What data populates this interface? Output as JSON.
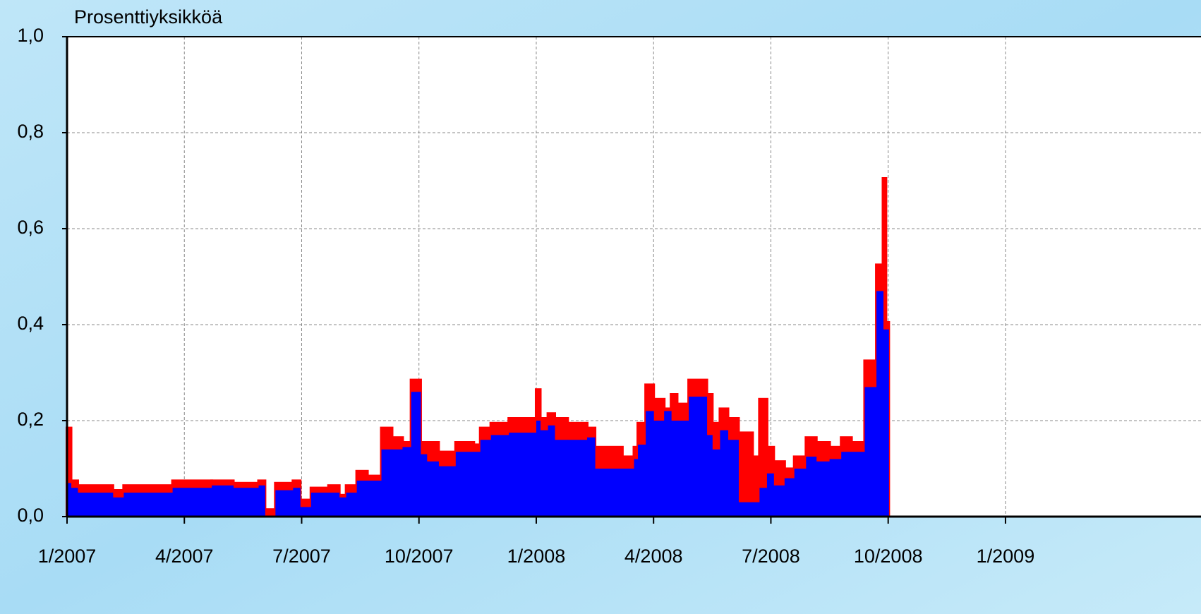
{
  "chart_data": {
    "type": "step-area",
    "y_axis_label": "Prosenttiyksikköä",
    "x": [
      0,
      0.1,
      0.27,
      1.17,
      1.45,
      2.7,
      3.7,
      4.25,
      4.9,
      5.06,
      5.33,
      5.78,
      5.96,
      6.24,
      6.69,
      6.96,
      7.14,
      7.41,
      7.68,
      8.04,
      8.31,
      8.58,
      8.8,
      9.04,
      9.2,
      9.5,
      9.94,
      10.4,
      10.57,
      10.84,
      11.3,
      12.0,
      12.1,
      12.3,
      12.47,
      12.8,
      13.3,
      13.5,
      14.2,
      14.5,
      14.6,
      14.8,
      15.0,
      15.27,
      15.45,
      15.6,
      15.9,
      16.36,
      16.5,
      16.7,
      16.9,
      17.17,
      17.53,
      17.71,
      17.9,
      18.07,
      18.35,
      18.6,
      18.9,
      19.16,
      19.5,
      19.8,
      20.06,
      20.4,
      20.7,
      20.87,
      20.94
    ],
    "series": [
      {
        "color": "#ff0000",
        "values": [
          0.18,
          0.07,
          0.06,
          0.05,
          0.06,
          0.07,
          0.07,
          0.065,
          0.07,
          0.01,
          0.065,
          0.07,
          0.03,
          0.055,
          0.06,
          0.04,
          0.06,
          0.09,
          0.08,
          0.18,
          0.16,
          0.15,
          0.28,
          0.15,
          0.15,
          0.13,
          0.15,
          0.145,
          0.18,
          0.19,
          0.2,
          0.26,
          0.2,
          0.21,
          0.2,
          0.19,
          0.18,
          0.14,
          0.12,
          0.14,
          0.19,
          0.27,
          0.24,
          0.22,
          0.25,
          0.23,
          0.28,
          0.25,
          0.19,
          0.22,
          0.2,
          0.17,
          0.12,
          0.24,
          0.14,
          0.11,
          0.095,
          0.12,
          0.16,
          0.15,
          0.14,
          0.16,
          0.15,
          0.32,
          0.52,
          0.7,
          0.4
        ]
      },
      {
        "color": "#0000ff",
        "values": [
          0.07,
          0.06,
          0.05,
          0.04,
          0.05,
          0.06,
          0.065,
          0.06,
          0.065,
          0.0,
          0.055,
          0.06,
          0.02,
          0.05,
          0.05,
          0.04,
          0.05,
          0.075,
          0.075,
          0.14,
          0.14,
          0.145,
          0.26,
          0.13,
          0.115,
          0.105,
          0.135,
          0.135,
          0.16,
          0.17,
          0.175,
          0.2,
          0.18,
          0.19,
          0.16,
          0.16,
          0.165,
          0.1,
          0.1,
          0.12,
          0.15,
          0.22,
          0.2,
          0.22,
          0.2,
          0.2,
          0.25,
          0.17,
          0.14,
          0.18,
          0.16,
          0.03,
          0.03,
          0.06,
          0.09,
          0.065,
          0.08,
          0.1,
          0.125,
          0.115,
          0.12,
          0.135,
          0.135,
          0.27,
          0.47,
          0.39,
          0.39
        ]
      }
    ],
    "xlim": [
      0,
      29
    ],
    "xticks": [
      {
        "value": 0,
        "label": "1/2007"
      },
      {
        "value": 3,
        "label": "4/2007"
      },
      {
        "value": 6,
        "label": "7/2007"
      },
      {
        "value": 9,
        "label": "10/2007"
      },
      {
        "value": 12,
        "label": "1/2008"
      },
      {
        "value": 15,
        "label": "4/2008"
      },
      {
        "value": 18,
        "label": "7/2008"
      },
      {
        "value": 21,
        "label": "10/2008"
      },
      {
        "value": 24,
        "label": "1/2009"
      }
    ],
    "ylim": [
      0,
      1
    ],
    "yticks": [
      {
        "value": 0,
        "label": "0,0"
      },
      {
        "value": 0.2,
        "label": "0,2"
      },
      {
        "value": 0.4,
        "label": "0,4"
      },
      {
        "value": 0.6,
        "label": "0,6"
      },
      {
        "value": 0.8,
        "label": "0,8"
      },
      {
        "value": 1,
        "label": "1,0"
      }
    ],
    "grid": true
  }
}
